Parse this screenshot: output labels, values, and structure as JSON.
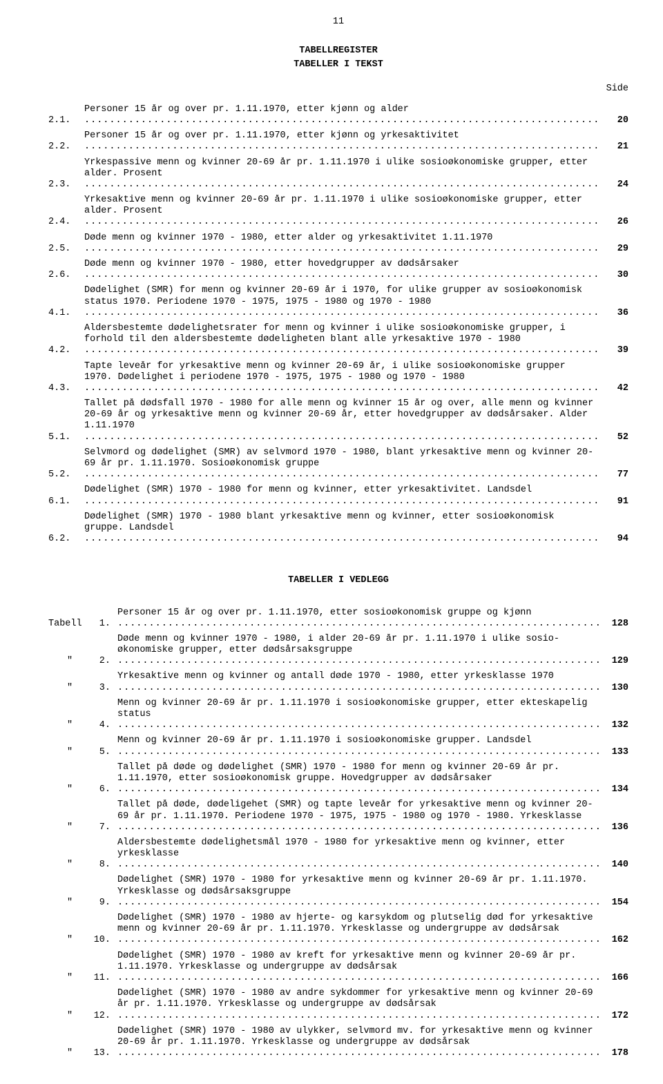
{
  "page_number": "11",
  "heading_main": "TABELLREGISTER",
  "heading_sub": "TABELLER I TEKST",
  "side_label": "Side",
  "section2_heading": "TABELLER I VEDLEGG",
  "tbl_prefix_first": "Tabell",
  "tbl_prefix_ditto": "\"",
  "entries": [
    {
      "num": "2.1.",
      "text": "Personer 15 år og over pr. 1.11.1970, etter kjønn og alder",
      "page": "20"
    },
    {
      "num": "2.2.",
      "text": "Personer 15 år og over pr. 1.11.1970, etter kjønn og yrkesaktivitet",
      "page": "21"
    },
    {
      "num": "2.3.",
      "text": "Yrkespassive menn og kvinner 20-69 år pr. 1.11.1970 i ulike sosioøkonomiske grupper, etter alder.  Prosent",
      "page": "24"
    },
    {
      "num": "2.4.",
      "text": "Yrkesaktive menn og kvinner 20-69 år pr. 1.11.1970 i ulike sosioøkonomiske grupper, etter alder.  Prosent",
      "page": "26"
    },
    {
      "num": "2.5.",
      "text": "Døde menn og kvinner 1970 - 1980, etter alder og yrkesaktivitet 1.11.1970",
      "page": "29"
    },
    {
      "num": "2.6.",
      "text": "Døde menn og kvinner 1970 - 1980, etter hovedgrupper av dødsårsaker",
      "page": "30"
    },
    {
      "num": "4.1.",
      "text": "Dødelighet (SMR) for menn og kvinner 20-69 år i 1970, for ulike grupper av sosioøkonomisk status 1970.  Periodene 1970 - 1975, 1975 - 1980 og 1970 - 1980",
      "page": "36"
    },
    {
      "num": "4.2.",
      "text": "Aldersbestemte dødelighetsrater for menn og kvinner i ulike sosioøkonomiske grupper, i forhold til den aldersbestemte dødeligheten blant alle yrkesaktive 1970 - 1980",
      "page": "39"
    },
    {
      "num": "4.3.",
      "text": "Tapte leveår for yrkesaktive menn og kvinner 20-69 år, i ulike sosioøkonomiske grupper 1970.  Dødelighet i periodene 1970 - 1975, 1975 - 1980 og 1970 - 1980",
      "page": "42"
    },
    {
      "num": "5.1.",
      "text": "Tallet på dødsfall 1970 - 1980 for alle menn og kvinner 15 år og over, alle menn og kvinner 20-69 år og yrkesaktive menn og kvinner 20-69 år, etter hovedgrupper av døds­årsaker.  Alder 1.11.1970",
      "page": "52"
    },
    {
      "num": "5.2.",
      "text": "Selvmord og dødelighet (SMR) av selvmord 1970 - 1980, blant yrkesaktive menn og kvinner 20-69 år pr. 1.11.1970.  Sosioøkonomisk gruppe",
      "page": "77"
    },
    {
      "num": "6.1.",
      "text": "Dødelighet (SMR) 1970 - 1980 for menn og kvinner, etter yrkesaktivitet.  Landsdel",
      "page": "91"
    },
    {
      "num": "6.2.",
      "text": "Dødelighet (SMR) 1970 - 1980 blant yrkesaktive menn og kvinner, etter sosioøkonomisk gruppe.  Landsdel",
      "page": "94"
    }
  ],
  "tbl_entries": [
    {
      "num": "1.",
      "text": "Personer 15 år og over pr. 1.11.1970, etter sosioøkonomisk gruppe og kjønn",
      "page": "128"
    },
    {
      "num": "2.",
      "text": "Døde menn og kvinner 1970 - 1980, i alder 20-69 år pr. 1.11.1970 i ulike sosio­økonomiske grupper, etter dødsårsaksgruppe",
      "page": "129"
    },
    {
      "num": "3.",
      "text": "Yrkesaktive menn og kvinner og antall døde 1970 - 1980, etter yrkesklasse 1970",
      "page": "130"
    },
    {
      "num": "4.",
      "text": "Menn og kvinner 20-69 år pr. 1.11.1970 i sosioøkonomiske grupper, etter ekte­skapelig status",
      "page": "132"
    },
    {
      "num": "5.",
      "text": "Menn og kvinner 20-69 år pr. 1.11.1970 i sosioøkonomiske grupper.  Landsdel",
      "page": "133"
    },
    {
      "num": "6.",
      "text": "Tallet på døde og dødelighet (SMR) 1970 - 1980 for menn og kvinner 20-69 år pr. 1.11.1970, etter sosioøkonomisk gruppe.  Hovedgrupper av dødsårsaker",
      "page": "134"
    },
    {
      "num": "7.",
      "text": "Tallet på døde, dødeligehet (SMR) og tapte leveår for yrkesaktive menn og kvinner 20-69 år pr. 1.11.1970.  Periodene 1970 - 1975, 1975 - 1980 og 1970 - 1980. Yrkesklasse",
      "page": "136"
    },
    {
      "num": "8.",
      "text": "Aldersbestemte dødelighetsmål 1970 - 1980 for yrkesaktive menn og kvinner, etter yrkesklasse",
      "page": "140"
    },
    {
      "num": "9.",
      "text": "Dødelighet (SMR) 1970 - 1980 for yrkesaktive menn og kvinner 20-69 år pr. 1.11.1970.  Yrkesklasse og dødsårsaksgruppe",
      "page": "154"
    },
    {
      "num": "10.",
      "text": "Dødelighet (SMR) 1970 - 1980 av hjerte- og karsykdom og plutselig død for yrkes­aktive menn og kvinner 20-69 år pr. 1.11.1970.  Yrkesklasse og undergruppe av dødsårsak",
      "page": "162"
    },
    {
      "num": "11.",
      "text": "Dødelighet (SMR) 1970 - 1980 av kreft for yrkesaktive menn og kvinner 20-69 år pr. 1.11.1970.  Yrkesklasse og undergruppe av dødsårsak",
      "page": "166"
    },
    {
      "num": "12.",
      "text": "Dødelighet (SMR) 1970 - 1980 av andre sykdommer for yrkesaktive menn og kvinner 20-69 år pr. 1.11.1970.  Yrkesklasse og undergruppe av dødsårsak",
      "page": "172"
    },
    {
      "num": "13.",
      "text": "Dødelighet (SMR) 1970 - 1980 av ulykker, selvmord mv. for yrkesaktive menn og kvinner 20-69 år pr. 1.11.1970.  Yrkesklasse og undergruppe av dødsårsak",
      "page": "178"
    }
  ]
}
